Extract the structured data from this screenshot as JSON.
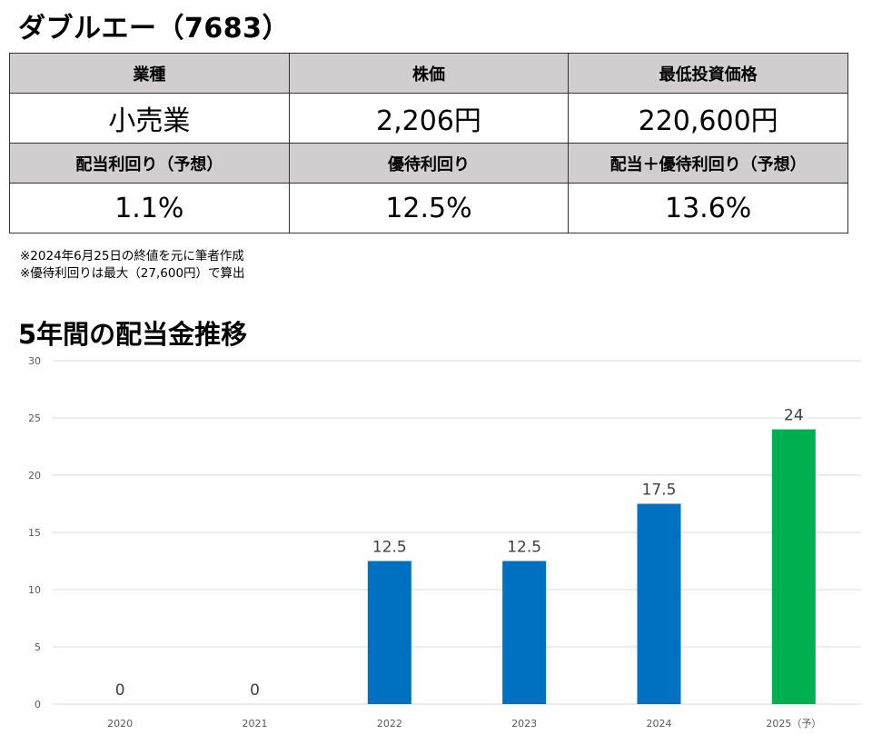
{
  "title": "ダブルエー（7683）",
  "table": {
    "row1_headers": [
      "業種",
      "株価",
      "最低投資価格"
    ],
    "row1_values": [
      "小売業",
      "2,206円",
      "220,600円"
    ],
    "row2_headers": [
      "配当利回り（予想）",
      "優待利回り",
      "配当＋優待利回り（予想）"
    ],
    "row2_values": [
      "1.1%",
      "12.5%",
      "13.6%"
    ]
  },
  "notes": [
    "※2024年6月25日の終値を元に筆者作成",
    "※優待利回りは最大（27,600円）で算出"
  ],
  "chart_title": "5年間の配当金推移",
  "colors": {
    "actual": "#0070c0",
    "forecast": "#00b050",
    "grid": "#d9d9d9",
    "header_bg": "#d0cece"
  },
  "chart_data": {
    "type": "bar",
    "categories": [
      "2020",
      "2021",
      "2022",
      "2023",
      "2024",
      "2025（予）"
    ],
    "values": [
      0,
      0,
      12.5,
      12.5,
      17.5,
      24
    ],
    "data_labels": [
      "0",
      "0",
      "12.5",
      "12.5",
      "17.5",
      "24"
    ],
    "forecast_index": 5,
    "ylim": [
      0,
      30
    ],
    "yticks": [
      0,
      5,
      10,
      15,
      20,
      25,
      30
    ],
    "grid": true,
    "legend": "none",
    "xlabel": "",
    "ylabel": ""
  }
}
